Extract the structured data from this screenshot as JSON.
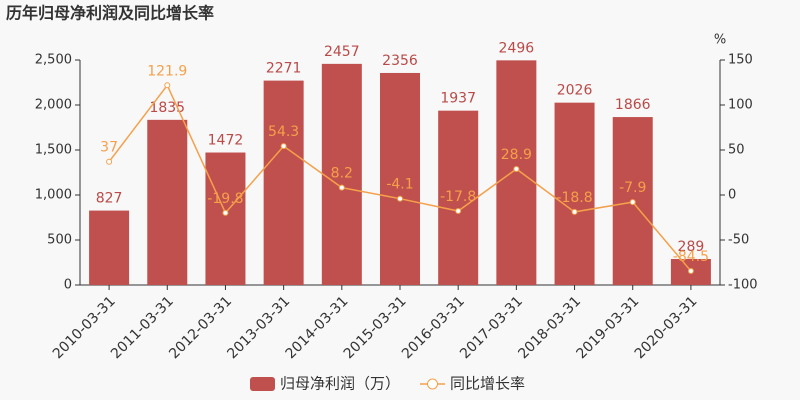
{
  "chart_data": {
    "type": "combo",
    "title": "历年归母净利润及同比增长率",
    "y2_label": "%",
    "categories": [
      "2010-03-31",
      "2011-03-31",
      "2012-03-31",
      "2013-03-31",
      "2014-03-31",
      "2015-03-31",
      "2016-03-31",
      "2017-03-31",
      "2018-03-31",
      "2019-03-31",
      "2020-03-31"
    ],
    "series": [
      {
        "name": "归母净利润（万）",
        "type": "bar",
        "color": "#c0504d",
        "values": [
          827,
          1835,
          1472,
          2271,
          2457,
          2356,
          1937,
          2496,
          2026,
          1866,
          289
        ]
      },
      {
        "name": "同比增长率",
        "type": "line",
        "axis": "y2",
        "color": "#f5a04a",
        "values": [
          37,
          121.9,
          -19.8,
          54.3,
          8.2,
          -4.1,
          -17.8,
          28.9,
          -18.8,
          -7.9,
          -84.5
        ]
      }
    ],
    "ylim": [
      0,
      2500
    ],
    "yticks": [
      0,
      500,
      {
        "value": 1000,
        "label": "1,000"
      },
      {
        "value": 1500,
        "label": "1,500"
      },
      {
        "value": 2000,
        "label": "2,000"
      },
      {
        "value": 2500,
        "label": "2,500"
      }
    ],
    "y2lim": [
      -100,
      150
    ],
    "y2ticks": [
      -100,
      -50,
      0,
      50,
      100,
      150
    ]
  }
}
